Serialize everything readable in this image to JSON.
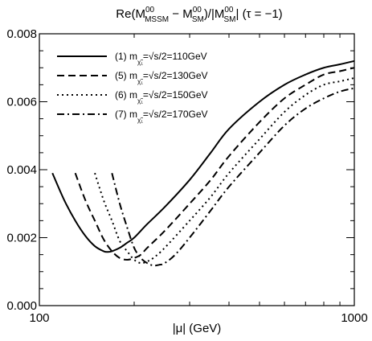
{
  "chart_data": {
    "type": "line",
    "title_parts": {
      "main": "Re(M",
      "sup1": "00",
      "sub1": "MSSM",
      "minus": " − M",
      "sup2": "00",
      "sub2": "SM",
      "mid": ")/|M",
      "sup3": "00",
      "sub3": "SM",
      "tail": "|   (τ = −1)"
    },
    "xlabel": "|μ| (GeV)",
    "ylabel": "",
    "x_scale": "log",
    "xlim": [
      100,
      1000
    ],
    "ylim": [
      0,
      0.008
    ],
    "x_ticks": [
      {
        "value": 100,
        "label": "100"
      },
      {
        "value": 1000,
        "label": "1000"
      }
    ],
    "x_minor_ticks": [
      200,
      300,
      400,
      500,
      600,
      700,
      800,
      900
    ],
    "y_ticks": [
      {
        "value": 0,
        "label": "0.000"
      },
      {
        "value": 0.002,
        "label": "0.002"
      },
      {
        "value": 0.004,
        "label": "0.004"
      },
      {
        "value": 0.006,
        "label": "0.006"
      },
      {
        "value": 0.008,
        "label": "0.008"
      }
    ],
    "y_minor_step": 0.0005,
    "grid": false,
    "legend_position": "top-left",
    "series": [
      {
        "name_prefix": "(1) m",
        "name_sub": "χ̃₁",
        "name_suffix": "=√s/2=110GeV",
        "dash": "solid",
        "x": [
          110,
          120,
          130,
          140,
          150,
          160,
          165,
          170,
          180,
          190,
          200,
          220,
          250,
          300,
          350,
          400,
          500,
          600,
          700,
          800,
          900,
          1000
        ],
        "y": [
          0.0039,
          0.0031,
          0.0025,
          0.00205,
          0.00175,
          0.0016,
          0.00158,
          0.0016,
          0.0017,
          0.00185,
          0.002,
          0.0024,
          0.0029,
          0.0037,
          0.0045,
          0.0052,
          0.006,
          0.0065,
          0.0068,
          0.007,
          0.0071,
          0.0072
        ]
      },
      {
        "name_prefix": "(5) m",
        "name_sub": "χ̃₁",
        "name_suffix": "=√s/2=130GeV",
        "dash": "dashed",
        "x": [
          130,
          140,
          150,
          160,
          170,
          180,
          190,
          200,
          210,
          220,
          250,
          300,
          350,
          400,
          500,
          600,
          700,
          800,
          900,
          1000
        ],
        "y": [
          0.0039,
          0.0031,
          0.0025,
          0.00195,
          0.0016,
          0.0014,
          0.00135,
          0.0014,
          0.0015,
          0.0017,
          0.0022,
          0.003,
          0.0037,
          0.0044,
          0.0054,
          0.0061,
          0.0065,
          0.0068,
          0.0069,
          0.007
        ]
      },
      {
        "name_prefix": "(6) m",
        "name_sub": "χ̃₁",
        "name_suffix": "=√s/2=150GeV",
        "dash": "dotted",
        "x": [
          150,
          160,
          170,
          180,
          190,
          200,
          210,
          220,
          230,
          250,
          300,
          350,
          400,
          500,
          600,
          700,
          800,
          900,
          1000
        ],
        "y": [
          0.0039,
          0.0031,
          0.0025,
          0.0019,
          0.0016,
          0.00135,
          0.00125,
          0.0013,
          0.0014,
          0.0017,
          0.0025,
          0.0032,
          0.0039,
          0.0049,
          0.0057,
          0.0062,
          0.0065,
          0.0066,
          0.0067
        ]
      },
      {
        "name_prefix": "(7) m",
        "name_sub": "χ̃₁",
        "name_suffix": "=√s/2=170GeV",
        "dash": "dashdot",
        "x": [
          170,
          180,
          190,
          200,
          210,
          220,
          230,
          240,
          250,
          270,
          300,
          350,
          400,
          500,
          600,
          700,
          800,
          900,
          1000
        ],
        "y": [
          0.0039,
          0.003,
          0.0023,
          0.0017,
          0.0014,
          0.00125,
          0.00118,
          0.0012,
          0.00125,
          0.0015,
          0.002,
          0.0028,
          0.0035,
          0.0045,
          0.0053,
          0.0058,
          0.0061,
          0.0063,
          0.0064
        ]
      }
    ]
  }
}
